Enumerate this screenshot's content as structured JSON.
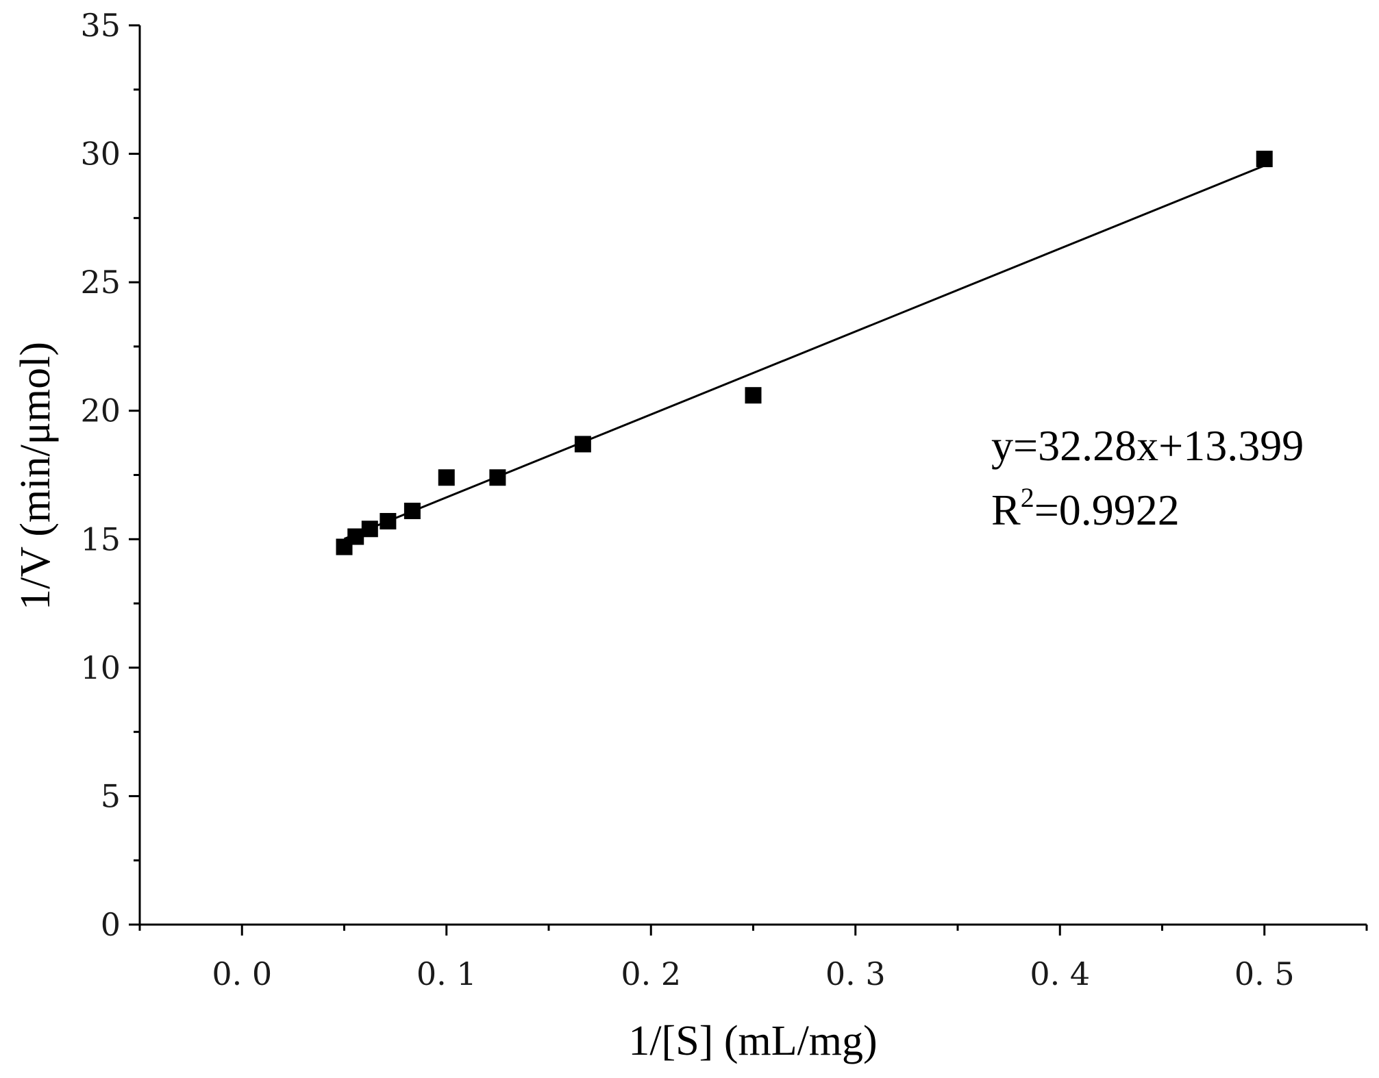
{
  "chart_data": {
    "type": "scatter",
    "title": "",
    "xlabel": "1/[S] (mL/mg)",
    "ylabel": "1/V (min/μmol)",
    "xlim": [
      -0.05,
      0.55
    ],
    "ylim": [
      0,
      35
    ],
    "x_ticks": [
      0.0,
      0.1,
      0.2,
      0.3,
      0.4,
      0.5
    ],
    "x_tick_labels": [
      "0. 0",
      "0. 1",
      "0. 2",
      "0. 3",
      "0. 4",
      "0. 5"
    ],
    "y_ticks": [
      0,
      5,
      10,
      15,
      20,
      25,
      30,
      35
    ],
    "y_tick_labels": [
      "0",
      "5",
      "10",
      "15",
      "20",
      "25",
      "30",
      "35"
    ],
    "grid": false,
    "legend": "none",
    "marker": "square",
    "marker_color": "#000000",
    "series": [
      {
        "x": [
          0.05,
          0.0556,
          0.0625,
          0.0714,
          0.0833,
          0.1,
          0.125,
          0.1667,
          0.25,
          0.5
        ],
        "y": [
          14.7,
          15.1,
          15.4,
          15.7,
          16.1,
          17.4,
          17.4,
          18.7,
          20.6,
          29.8
        ]
      }
    ],
    "fit_line": {
      "slope": 32.28,
      "intercept": 13.399,
      "x_range": [
        0.05,
        0.5
      ],
      "color": "#000000"
    },
    "annotations": {
      "equation": "y=32.28x+13.399",
      "r2_prefix": "R",
      "r2_superscript": "2",
      "r2_value": "=0.9922"
    }
  }
}
